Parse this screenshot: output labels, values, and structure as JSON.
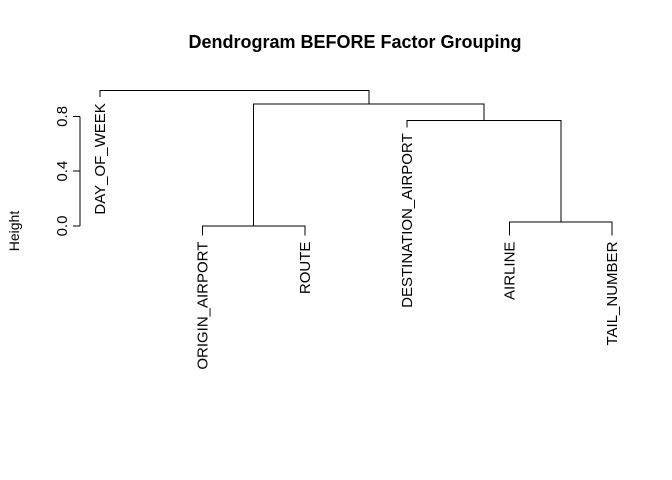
{
  "chart_data": {
    "type": "dendrogram",
    "title": "Dendrogram BEFORE Factor Grouping",
    "ylabel": "Height",
    "xlabel": "",
    "ylim": [
      0,
      1.0
    ],
    "yticks": [
      0.0,
      0.4,
      0.8
    ],
    "ytick_labels": [
      "0.0",
      "0.4",
      "0.8"
    ],
    "leaves": [
      "DAY_OF_WEEK",
      "ORIGIN_AIRPORT",
      "ROUTE",
      "DESTINATION_AIRPORT",
      "AIRLINE",
      "TAIL_NUMBER"
    ],
    "merges": [
      {
        "left": [
          "ORIGIN_AIRPORT"
        ],
        "right": [
          "ROUTE"
        ],
        "height": 0.0
      },
      {
        "left": [
          "AIRLINE"
        ],
        "right": [
          "TAIL_NUMBER"
        ],
        "height": 0.03
      },
      {
        "left": [
          "DESTINATION_AIRPORT"
        ],
        "right": [
          "AIRLINE",
          "TAIL_NUMBER"
        ],
        "height": 0.77
      },
      {
        "left": [
          "ORIGIN_AIRPORT",
          "ROUTE"
        ],
        "right": [
          "DESTINATION_AIRPORT",
          "AIRLINE",
          "TAIL_NUMBER"
        ],
        "height": 0.89
      },
      {
        "left": [
          "DAY_OF_WEEK"
        ],
        "right": [
          "ORIGIN_AIRPORT",
          "ROUTE",
          "DESTINATION_AIRPORT",
          "AIRLINE",
          "TAIL_NUMBER"
        ],
        "height": 0.99
      }
    ],
    "leaf_tip_heights": {
      "DAY_OF_WEEK": 0.94,
      "ORIGIN_AIRPORT": -0.07,
      "ROUTE": -0.07,
      "DESTINATION_AIRPORT": 0.72,
      "AIRLINE": -0.07,
      "TAIL_NUMBER": -0.07
    }
  }
}
